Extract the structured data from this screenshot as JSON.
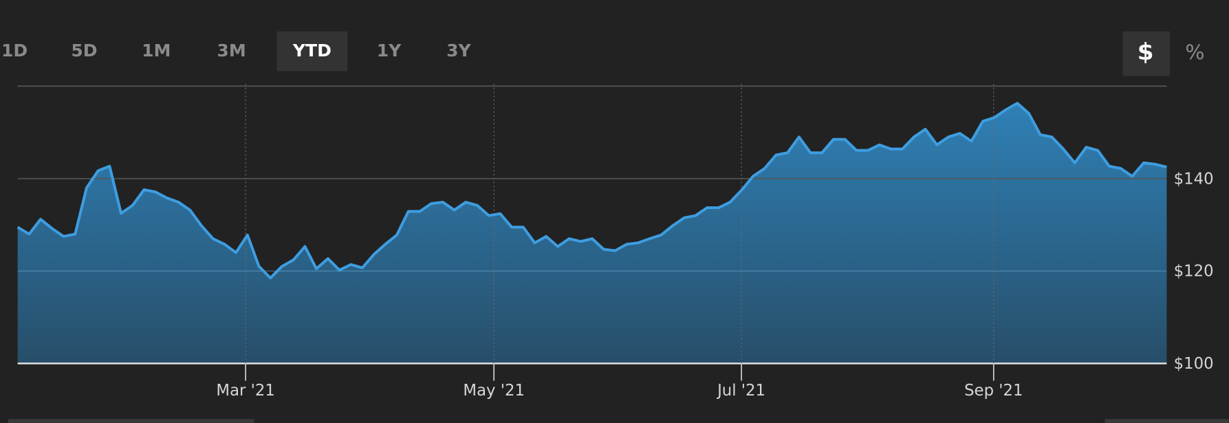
{
  "controls": {
    "ranges": [
      "1D",
      "5D",
      "1M",
      "3M",
      "YTD",
      "1Y",
      "3Y"
    ],
    "selected_range": "YTD",
    "units": [
      "$",
      "%"
    ],
    "selected_unit": "$"
  },
  "chart_data": {
    "type": "area",
    "color": "#3e9de0",
    "fill_top": "#2f80b6",
    "fill_bottom": "#274e69",
    "values": [
      129.5,
      128,
      131.2,
      129.2,
      127.5,
      128,
      138,
      141.7,
      142.7,
      132.5,
      134.2,
      137.6,
      137.1,
      135.8,
      134.9,
      133.2,
      129.8,
      127,
      125.8,
      124,
      127.8,
      121,
      118.5,
      121,
      122.4,
      125.3,
      120.5,
      122.7,
      120.2,
      121.4,
      120.7,
      123.6,
      125.8,
      127.8,
      132.9,
      132.9,
      134.6,
      134.9,
      133.2,
      134.9,
      134.2,
      132,
      132.4,
      129.5,
      129.5,
      126.1,
      127.5,
      125.3,
      127,
      126.4,
      127,
      124.7,
      124.4,
      125.8,
      126.1,
      127,
      127.8,
      129.8,
      131.5,
      132,
      133.7,
      133.7,
      134.9,
      137.5,
      140.5,
      142.2,
      145.1,
      145.6,
      149,
      145.6,
      145.6,
      148.5,
      148.5,
      146.1,
      146.1,
      147.3,
      146.4,
      146.4,
      149,
      150.7,
      147.3,
      149,
      149.8,
      148.1,
      152.4,
      153.2,
      154.9,
      156.3,
      154.1,
      149.5,
      149,
      146.4,
      143.4,
      146.8,
      146.1,
      142.7,
      142.2,
      140.5,
      143.4,
      143.1,
      142.5
    ],
    "xlim": [
      0,
      100
    ],
    "xticks": [
      {
        "value": 19.84,
        "label": "Mar '21"
      },
      {
        "value": 41.45,
        "label": "May '21"
      },
      {
        "value": 62.99,
        "label": "Jul '21"
      },
      {
        "value": 84.94,
        "label": "Sep '21"
      }
    ],
    "ylim": [
      100,
      160
    ],
    "yticks": [
      {
        "value": 100,
        "label": "$100"
      },
      {
        "value": 120,
        "label": "$120"
      },
      {
        "value": 140,
        "label": "$140"
      },
      {
        "value": 160,
        "label": ""
      }
    ],
    "grid": true
  }
}
